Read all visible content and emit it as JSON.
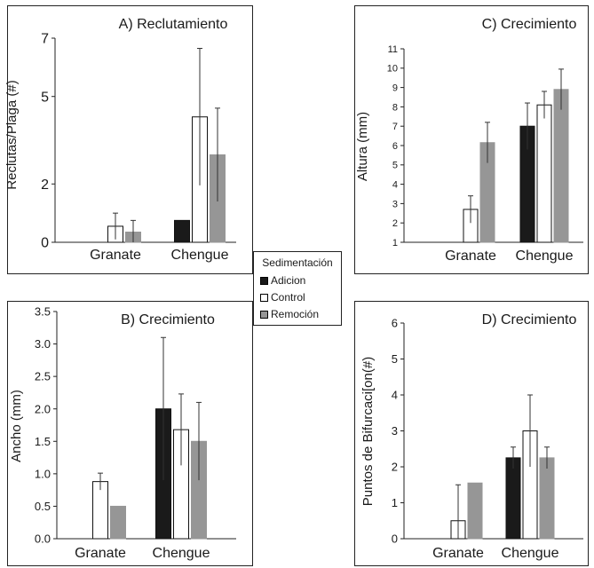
{
  "colors": {
    "Adicion": "#1a1a1a",
    "Control": "#ffffff",
    "Remocion": "#969696"
  },
  "legend": {
    "title": "Sedimentación",
    "items": [
      {
        "label": "Adicion",
        "key": "Adicion"
      },
      {
        "label": "Control",
        "key": "Control"
      },
      {
        "label": "Remoción",
        "key": "Remocion"
      }
    ]
  },
  "chart_data": [
    {
      "type": "bar",
      "title": "A) Reclutamiento",
      "ylabel": "Reclutas/Plaga (#)",
      "categories": [
        "Granate",
        "Chengue"
      ],
      "yticks": [
        "0",
        "2",
        "5",
        "7"
      ],
      "ylim": [
        0,
        7
      ],
      "series": [
        {
          "name": "Adicion",
          "values": [
            null,
            0.75
          ],
          "errors": [
            null,
            null
          ]
        },
        {
          "name": "Control",
          "values": [
            0.55,
            4.3
          ],
          "errors": [
            0.45,
            2.35
          ]
        },
        {
          "name": "Remocion",
          "values": [
            0.35,
            3.0
          ],
          "errors": [
            0.4,
            1.6
          ]
        }
      ]
    },
    {
      "type": "bar",
      "title": "B) Crecimiento",
      "ylabel": "Ancho (mm)",
      "categories": [
        "Granate",
        "Chengue"
      ],
      "yticks": [
        "0.0",
        "0.5",
        "1.0",
        "1.5",
        "2.0",
        "2.5",
        "3.0",
        "3.5"
      ],
      "ylim": [
        0,
        3.5
      ],
      "series": [
        {
          "name": "Adicion",
          "values": [
            null,
            2.0
          ],
          "errors": [
            null,
            1.1
          ]
        },
        {
          "name": "Control",
          "values": [
            0.88,
            1.68
          ],
          "errors": [
            0.13,
            0.55
          ]
        },
        {
          "name": "Remocion",
          "values": [
            0.5,
            1.5
          ],
          "errors": [
            null,
            0.6
          ]
        }
      ]
    },
    {
      "type": "bar",
      "title": "C) Crecimiento",
      "ylabel": "Altura (mm)",
      "categories": [
        "Granate",
        "Chengue"
      ],
      "yticks": [
        "1",
        "2",
        "3",
        "4",
        "5",
        "6",
        "7",
        "8",
        "9",
        "10",
        "11"
      ],
      "ylim": [
        1,
        11
      ],
      "series": [
        {
          "name": "Adicion",
          "values": [
            null,
            7.0
          ],
          "errors": [
            null,
            1.2
          ]
        },
        {
          "name": "Control",
          "values": [
            2.7,
            8.1
          ],
          "errors": [
            0.7,
            0.7
          ]
        },
        {
          "name": "Remocion",
          "values": [
            6.15,
            8.9
          ],
          "errors": [
            1.05,
            1.05
          ]
        }
      ]
    },
    {
      "type": "bar",
      "title": "D) Crecimiento",
      "ylabel": "Puntos de Bifurcaci[on(#)",
      "categories": [
        "Granate",
        "Chengue"
      ],
      "yticks": [
        "0",
        "1",
        "2",
        "3",
        "4",
        "5",
        "6"
      ],
      "ylim": [
        0,
        6
      ],
      "series": [
        {
          "name": "Adicion",
          "values": [
            null,
            2.25
          ],
          "errors": [
            null,
            0.3
          ]
        },
        {
          "name": "Control",
          "values": [
            0.5,
            3.0
          ],
          "errors": [
            1.0,
            1.0
          ]
        },
        {
          "name": "Remocion",
          "values": [
            1.55,
            2.25
          ],
          "errors": [
            null,
            0.3
          ]
        }
      ]
    }
  ]
}
